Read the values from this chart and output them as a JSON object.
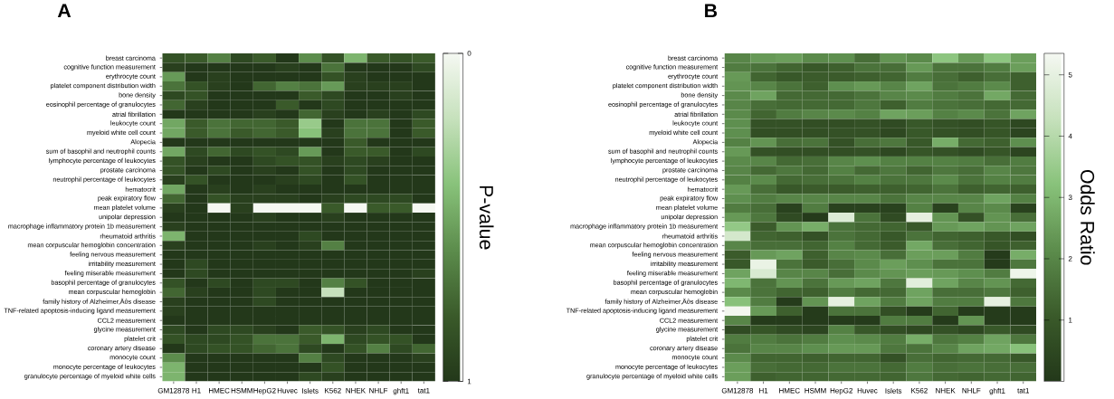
{
  "chart_data": [
    {
      "type": "heatmap",
      "title": "A",
      "clabel": "P-value",
      "clim": [
        1,
        0
      ],
      "cticks": [
        0,
        1
      ],
      "categories": [
        "GM12878",
        "H1",
        "HMEC",
        "HSMM",
        "HepG2",
        "Huvec",
        "Islets",
        "K562",
        "NHEK",
        "NHLF",
        "ghft1",
        "tat1"
      ],
      "y_categories": [
        "breast carcinoma",
        "cognitive function measurement",
        "erythrocyte count",
        "platelet component distribution width",
        "bone density",
        "eosinophil percentage of granulocytes",
        "atrial fibrillation",
        "leukocyte count",
        "myeloid white cell count",
        "Alopecia",
        "sum of basophil and neutrophil counts",
        "lymphocyte percentage of leukocytes",
        "prostate carcinoma",
        "neutrophil percentage of leukocytes",
        "hematocrit",
        "peak expiratory flow",
        "mean platelet volume",
        "unipolar depression",
        "macrophage inflammatory protein 1b measurement",
        "rheumatoid arthritis",
        "mean corpuscular hemoglobin concentration",
        "feeling nervous measurement",
        "irritability measurement",
        "feeling miserable measurement",
        "basophil percentage of granulocytes",
        "mean corpuscular hemoglobin",
        "family history of Alzheimer‚Äôs disease",
        "TNF-related apoptosis-inducing ligand measurement",
        "CCL2 measurement",
        "glycine measurement",
        "platelet crit",
        "coronary artery disease",
        "monocyte count",
        "monocyte percentage of leukocytes",
        "granulocyte percentage of myeloid white cells"
      ],
      "cells": [
        [
          0.85,
          0.8,
          0.65,
          0.9,
          0.8,
          1,
          0.6,
          0.85,
          0.45,
          0.8,
          0.85,
          0.8
        ],
        [
          0.95,
          1,
          1,
          1,
          1,
          0.95,
          1,
          0.7,
          1,
          1,
          1,
          0.9
        ],
        [
          0.55,
          1,
          0.95,
          1,
          1,
          1,
          1,
          0.85,
          0.95,
          1,
          1,
          1
        ],
        [
          0.7,
          0.85,
          0.95,
          1,
          0.75,
          0.65,
          0.7,
          0.55,
          0.95,
          0.95,
          0.95,
          1
        ],
        [
          0.9,
          0.85,
          1,
          1,
          1,
          1,
          0.8,
          0.9,
          1,
          1,
          0.95,
          1
        ],
        [
          0.75,
          0.95,
          1,
          1,
          1,
          0.8,
          1,
          0.9,
          1,
          1,
          1,
          1
        ],
        [
          1,
          1,
          1,
          1,
          0.95,
          1,
          0.75,
          0.95,
          1,
          0.95,
          1,
          0.9
        ],
        [
          0.5,
          0.8,
          0.7,
          0.75,
          0.75,
          0.8,
          0.35,
          1,
          0.7,
          0.7,
          1,
          0.8
        ],
        [
          0.5,
          0.8,
          0.7,
          0.8,
          0.75,
          0.8,
          0.4,
          0.95,
          0.7,
          0.7,
          1,
          0.8
        ],
        [
          1,
          1,
          1,
          1,
          1,
          1,
          1,
          1,
          0.8,
          1,
          1,
          1
        ],
        [
          0.5,
          0.9,
          0.75,
          0.9,
          0.85,
          0.9,
          0.55,
          1,
          0.8,
          0.8,
          1,
          0.9
        ],
        [
          0.85,
          0.95,
          1,
          1,
          0.9,
          0.85,
          0.85,
          0.95,
          0.9,
          0.95,
          1,
          1
        ],
        [
          0.85,
          1,
          0.9,
          1,
          0.95,
          1,
          0.85,
          1,
          0.9,
          1,
          1,
          1
        ],
        [
          0.95,
          0.85,
          1,
          1,
          1,
          0.95,
          0.9,
          1,
          0.85,
          1,
          1,
          1
        ],
        [
          0.5,
          1,
          0.95,
          1,
          0.95,
          1,
          1,
          1,
          1,
          1,
          1,
          1
        ],
        [
          0.75,
          1,
          0.85,
          0.95,
          0.95,
          0.95,
          1,
          0.95,
          0.9,
          0.9,
          0.9,
          1
        ],
        [
          0.95,
          1,
          0,
          0.95,
          0,
          0,
          0,
          0.8,
          0,
          0.8,
          0.8,
          0
        ],
        [
          1,
          1,
          1,
          1,
          0.95,
          1,
          1,
          0.95,
          1,
          1,
          1,
          1
        ],
        [
          0.95,
          1,
          1,
          1,
          1,
          1,
          1,
          1,
          1,
          1,
          1,
          1
        ],
        [
          0.45,
          1,
          1,
          1,
          1,
          1,
          0.9,
          1,
          1,
          1,
          1,
          1
        ],
        [
          0.95,
          1,
          1,
          1,
          0.95,
          1,
          0.95,
          0.65,
          1,
          1,
          1,
          1
        ],
        [
          1,
          1,
          1,
          1,
          1,
          1,
          1,
          1,
          1,
          1,
          1,
          1
        ],
        [
          1,
          0.9,
          1,
          1,
          1,
          1,
          1,
          1,
          1,
          1,
          1,
          1
        ],
        [
          1,
          0.9,
          1,
          1,
          1,
          1,
          1,
          1,
          1,
          1,
          1,
          0.95
        ],
        [
          0.85,
          1,
          0.9,
          1,
          0.9,
          0.9,
          1,
          0.65,
          0.85,
          1,
          1,
          1
        ],
        [
          0.75,
          0.95,
          1,
          1,
          0.9,
          1,
          1,
          0.2,
          1,
          1,
          1,
          1
        ],
        [
          0.95,
          1,
          1,
          1,
          0.9,
          1,
          1,
          1,
          1,
          1,
          1,
          1
        ],
        [
          0.95,
          1,
          1,
          1,
          1,
          1,
          1,
          1,
          1,
          1,
          1,
          1
        ],
        [
          1,
          1,
          1,
          1,
          1,
          1,
          1,
          1,
          1,
          1,
          1,
          1
        ],
        [
          0.9,
          1,
          0.9,
          0.9,
          0.95,
          1,
          0.8,
          0.85,
          0.95,
          0.9,
          1,
          1
        ],
        [
          0.85,
          0.9,
          0.9,
          0.85,
          0.7,
          0.7,
          0.8,
          0.45,
          0.9,
          0.85,
          0.85,
          1
        ],
        [
          1,
          0.9,
          0.85,
          0.85,
          0.75,
          0.7,
          0.9,
          1,
          0.85,
          0.65,
          0.9,
          0.75
        ],
        [
          0.6,
          1,
          1,
          1,
          1,
          1,
          0.65,
          0.9,
          1,
          1,
          1,
          0.95
        ],
        [
          0.45,
          1,
          1,
          1,
          1,
          1,
          1,
          0.85,
          1,
          1,
          1,
          1
        ],
        [
          0.45,
          1,
          1,
          1,
          1,
          1,
          0.9,
          0.95,
          1,
          1,
          1,
          1
        ]
      ]
    },
    {
      "type": "heatmap",
      "title": "B",
      "clabel": "Odds Ratio",
      "clim": [
        0,
        5.35
      ],
      "cticks": [
        1,
        2,
        3,
        4,
        5
      ],
      "categories": [
        "GM12878",
        "H1",
        "HMEC",
        "HSMM",
        "HepG2",
        "Huvec",
        "Islets",
        "K562",
        "NHEK",
        "NHLF",
        "ghft1",
        "tat1"
      ],
      "y_categories": [
        "breast carcinoma",
        "cognitive function measurement",
        "erythrocyte count",
        "platelet component distribution width",
        "bone density",
        "eosinophil percentage of granulocytes",
        "atrial fibrillation",
        "leukocyte count",
        "myeloid white cell count",
        "Alopecia",
        "sum of basophil and neutrophil counts",
        "lymphocyte percentage of leukocytes",
        "prostate carcinoma",
        "neutrophil percentage of leukocytes",
        "hematocrit",
        "peak expiratory flow",
        "mean platelet volume",
        "unipolar depression",
        "macrophage inflammatory protein 1b measurement",
        "rheumatoid arthritis",
        "mean corpuscular hemoglobin concentration",
        "feeling nervous measurement",
        "irritability measurement",
        "feeling miserable measurement",
        "basophil percentage of granulocytes",
        "mean corpuscular hemoglobin",
        "family history of Alzheimer‚Äôs disease",
        "TNF-related apoptosis-inducing ligand measurement",
        "CCL2 measurement",
        "glycine measurement",
        "platelet crit",
        "coronary artery disease",
        "monocyte count",
        "monocyte percentage of leukocytes",
        "granulocyte percentage of myeloid white cells"
      ],
      "cells": [
        [
          2.0,
          2.4,
          2.5,
          2.1,
          2.2,
          1.5,
          2.3,
          2.1,
          3.3,
          2.4,
          3.3,
          2.5
        ],
        [
          1.8,
          1.6,
          1.3,
          1.0,
          1.2,
          1.6,
          1.5,
          2.4,
          1.6,
          1.6,
          1.8,
          2.5
        ],
        [
          2.4,
          1.3,
          1.0,
          1.1,
          1.1,
          1.2,
          1.3,
          1.8,
          1.5,
          1.2,
          1.5,
          1.2
        ],
        [
          2.3,
          2.0,
          1.6,
          1.2,
          2.2,
          2.4,
          2.0,
          2.6,
          1.6,
          1.8,
          2.1,
          1.2
        ],
        [
          2.1,
          2.6,
          1.4,
          1.4,
          1.4,
          1.6,
          2.0,
          2.1,
          1.8,
          1.6,
          2.7,
          1.4
        ],
        [
          2.0,
          1.5,
          1.4,
          1.4,
          1.4,
          1.7,
          1.2,
          1.8,
          1.6,
          1.5,
          1.4,
          1.4
        ],
        [
          2.1,
          1.3,
          1.8,
          2.0,
          2.1,
          1.9,
          2.6,
          2.5,
          1.9,
          2.1,
          1.6,
          2.6
        ],
        [
          2.2,
          0.8,
          0.8,
          0.7,
          0.7,
          0.8,
          0.6,
          1.0,
          0.8,
          0.7,
          0.9,
          0.5
        ],
        [
          2.2,
          0.7,
          0.7,
          0.7,
          0.8,
          0.8,
          0.5,
          1.0,
          0.8,
          0.7,
          0.9,
          0.4
        ],
        [
          1.9,
          2.3,
          1.5,
          1.6,
          0.8,
          1.5,
          1.7,
          1.0,
          2.8,
          1.4,
          1.2,
          2.2
        ],
        [
          2.4,
          0.8,
          0.7,
          0.7,
          0.7,
          0.8,
          0.5,
          0.9,
          0.8,
          0.6,
          0.9,
          0.4
        ],
        [
          2.1,
          2.0,
          1.4,
          1.5,
          2.0,
          2.2,
          1.9,
          1.9,
          1.9,
          1.8,
          1.5,
          1.8
        ],
        [
          2.0,
          1.4,
          1.7,
          1.4,
          1.9,
          1.4,
          1.7,
          1.3,
          1.7,
          1.5,
          2.0,
          1.7
        ],
        [
          1.9,
          2.1,
          1.4,
          1.5,
          1.6,
          1.9,
          1.6,
          1.7,
          2.1,
          1.6,
          1.9,
          1.8
        ],
        [
          2.4,
          1.5,
          1.0,
          1.1,
          1.1,
          1.2,
          1.2,
          1.3,
          1.6,
          1.2,
          1.3,
          1.2
        ],
        [
          2.2,
          1.8,
          2.0,
          2.0,
          2.0,
          2.0,
          1.6,
          2.0,
          2.0,
          2.0,
          2.6,
          1.9
        ],
        [
          1.8,
          1.5,
          0.3,
          1.8,
          0.3,
          0.3,
          0.3,
          1.9,
          0.3,
          2.0,
          2.1,
          0.3
        ],
        [
          2.4,
          1.7,
          0.6,
          0.1,
          4.8,
          1.6,
          0.6,
          5.0,
          2.3,
          0.8,
          2.3,
          1.5
        ],
        [
          3.4,
          1.1,
          2.3,
          2.8,
          1.6,
          1.4,
          1.3,
          1.0,
          2.4,
          2.6,
          2.3,
          2.6
        ],
        [
          4.6,
          1.3,
          1.2,
          0.8,
          1.6,
          1.4,
          1.0,
          1.6,
          1.3,
          1.2,
          1.0,
          0.7
        ],
        [
          2.0,
          1.5,
          1.5,
          1.3,
          1.9,
          1.4,
          1.1,
          2.7,
          1.5,
          1.3,
          0.9,
          1.2
        ],
        [
          1.1,
          2.4,
          2.6,
          1.2,
          2.0,
          2.1,
          1.5,
          2.5,
          2.5,
          1.8,
          0.1,
          2.8
        ],
        [
          1.0,
          5.1,
          1.6,
          1.1,
          1.5,
          2.1,
          2.5,
          2.2,
          1.6,
          1.6,
          0.1,
          1.7
        ],
        [
          2.6,
          4.7,
          2.0,
          2.0,
          1.5,
          2.1,
          2.3,
          2.5,
          2.4,
          2.2,
          1.8,
          5.2
        ],
        [
          3.0,
          1.6,
          2.3,
          1.6,
          2.4,
          2.6,
          1.7,
          4.9,
          2.6,
          2.0,
          2.3,
          1.4
        ],
        [
          2.1,
          1.6,
          1.3,
          1.2,
          1.8,
          1.4,
          1.4,
          2.6,
          1.5,
          1.5,
          1.7,
          1.2
        ],
        [
          3.2,
          1.8,
          0.1,
          2.3,
          5.0,
          2.6,
          1.8,
          2.6,
          1.8,
          1.8,
          5.0,
          1.7
        ],
        [
          5.3,
          2.4,
          1.2,
          0.1,
          1.6,
          1.6,
          0.7,
          0.1,
          1.3,
          0.1,
          0.1,
          0.1
        ],
        [
          2.0,
          0.1,
          0.1,
          0.1,
          0.1,
          0.1,
          1.8,
          1.8,
          0.1,
          2.3,
          0.1,
          0.1
        ],
        [
          0.6,
          0.9,
          0.6,
          0.4,
          1.9,
          1.0,
          0.7,
          0.5,
          0.8,
          0.5,
          1.0,
          0.6
        ],
        [
          1.8,
          1.8,
          1.6,
          1.8,
          2.2,
          2.1,
          1.8,
          2.8,
          1.7,
          1.9,
          2.6,
          1.7
        ],
        [
          1.6,
          2.0,
          2.0,
          2.2,
          2.4,
          2.4,
          1.7,
          1.6,
          2.0,
          2.6,
          2.7,
          3.2
        ],
        [
          2.1,
          1.3,
          1.3,
          1.2,
          1.3,
          1.3,
          0.8,
          1.5,
          1.3,
          1.4,
          1.4,
          1.0
        ],
        [
          2.5,
          1.5,
          1.4,
          1.4,
          1.6,
          1.6,
          1.4,
          1.8,
          1.5,
          1.6,
          1.5,
          1.5
        ],
        [
          2.5,
          1.2,
          1.3,
          1.3,
          1.4,
          1.4,
          1.3,
          1.7,
          1.4,
          1.3,
          1.4,
          1.3
        ]
      ]
    }
  ]
}
